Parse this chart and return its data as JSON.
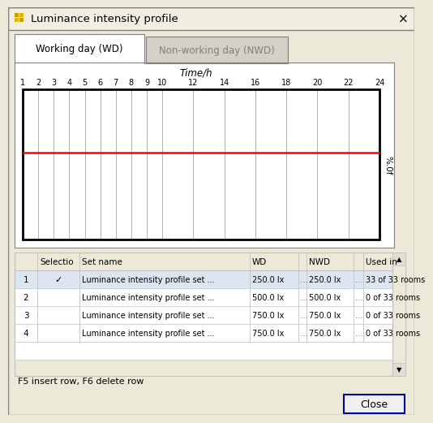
{
  "title": "Luminance intensity profile",
  "tab1": "Working day (WD)",
  "tab2": "Non-working day (NWD)",
  "chart_xlabel": "Time/h",
  "chart_ylabel": "%.0f",
  "time_ticks": [
    1,
    2,
    3,
    4,
    5,
    6,
    7,
    8,
    9,
    10,
    12,
    14,
    16,
    18,
    20,
    22,
    24
  ],
  "red_line_y": 0.42,
  "table_headers": [
    "",
    "Selectio",
    "Set name",
    "WD",
    "",
    "NWD",
    "",
    "Used in"
  ],
  "table_rows": [
    [
      "1",
      "✓",
      "Luminance intensity profile set ...",
      "250.0 lx",
      "...",
      "250.0 lx",
      "...",
      "33 of 33 rooms"
    ],
    [
      "2",
      "",
      "Luminance intensity profile set ...",
      "500.0 lx",
      "...",
      "500.0 lx",
      "...",
      "0 of 33 rooms"
    ],
    [
      "3",
      "",
      "Luminance intensity profile set ...",
      "750.0 lx",
      "...",
      "750.0 lx",
      "...",
      "0 of 33 rooms"
    ],
    [
      "4",
      "",
      "Luminance intensity profile set ...",
      "750.0 lx",
      "...",
      "750.0 lx",
      "...",
      "0 of 33 rooms"
    ]
  ],
  "footer_text": "F5 insert row, F6 delete row",
  "close_button": "Close",
  "bg_color": "#ece9d8",
  "dialog_bg": "#ece9d8",
  "chart_bg": "#ffffff",
  "title_bar_bg": "#f1efe2",
  "grid_color": "#b0b0b0",
  "border_color": "#000000",
  "red_line_color": "#ff0000",
  "table_border_color": "#c0c0c0",
  "tab_active_bg": "#ffffff",
  "tab_inactive_bg": "#d4d0c8",
  "close_btn_border": "#0000aa",
  "row1_bg": "#dce6f0",
  "row_bg": "#ffffff",
  "icon_colors": [
    "#e8a000",
    "#f0b800",
    "#f0b800",
    "#e8a000"
  ],
  "title_text_color": "#000000",
  "tab_text_color": "#000000"
}
